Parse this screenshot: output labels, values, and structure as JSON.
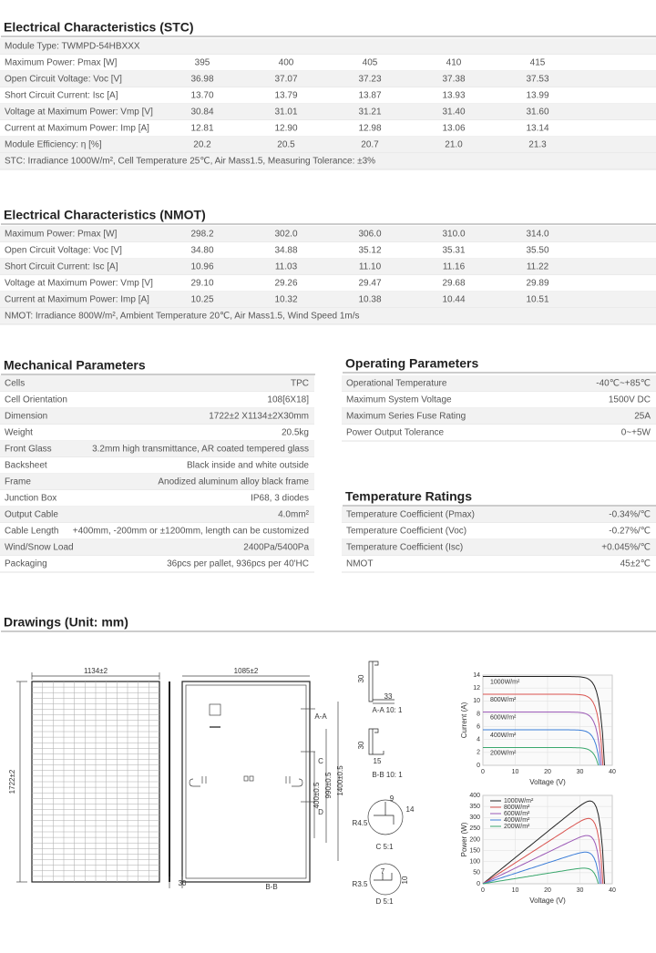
{
  "stc": {
    "title": "Electrical Characteristics (STC)",
    "module_type": "Module Type: TWMPD-54HBXXX",
    "rows": [
      {
        "label": "Maximum Power: Pmax [W]",
        "values": [
          "395",
          "400",
          "405",
          "410",
          "415"
        ]
      },
      {
        "label": "Open Circuit Voltage: Voc [V]",
        "values": [
          "36.98",
          "37.07",
          "37.23",
          "37.38",
          "37.53"
        ]
      },
      {
        "label": "Short Circuit Current: Isc [A]",
        "values": [
          "13.70",
          "13.79",
          "13.87",
          "13.93",
          "13.99"
        ]
      },
      {
        "label": "Voltage at Maximum Power: Vmp [V]",
        "values": [
          "30.84",
          "31.01",
          "31.21",
          "31.40",
          "31.60"
        ]
      },
      {
        "label": "Current at Maximum Power: Imp [A]",
        "values": [
          "12.81",
          "12.90",
          "12.98",
          "13.06",
          "13.14"
        ]
      },
      {
        "label": "Module Efficiency: η [%]",
        "values": [
          "20.2",
          "20.5",
          "20.7",
          "21.0",
          "21.3"
        ]
      }
    ],
    "note": "STC: Irradiance 1000W/m², Cell Temperature 25℃, Air Mass1.5, Measuring Tolerance: ±3%"
  },
  "nmot": {
    "title": "Electrical Characteristics (NMOT)",
    "rows": [
      {
        "label": "Maximum Power: Pmax [W]",
        "values": [
          "298.2",
          "302.0",
          "306.0",
          "310.0",
          "314.0"
        ]
      },
      {
        "label": "Open Circuit Voltage: Voc [V]",
        "values": [
          "34.80",
          "34.88",
          "35.12",
          "35.31",
          "35.50"
        ]
      },
      {
        "label": "Short Circuit Current: Isc [A]",
        "values": [
          "10.96",
          "11.03",
          "11.10",
          "11.16",
          "11.22"
        ]
      },
      {
        "label": "Voltage at Maximum Power: Vmp [V]",
        "values": [
          "29.10",
          "29.26",
          "29.47",
          "29.68",
          "29.89"
        ]
      },
      {
        "label": "Current at Maximum Power: Imp [A]",
        "values": [
          "10.25",
          "10.32",
          "10.38",
          "10.44",
          "10.51"
        ]
      }
    ],
    "note": "NMOT: Irradiance 800W/m², Ambient Temperature 20℃, Air Mass1.5, Wind Speed 1m/s"
  },
  "mechanical": {
    "title": "Mechanical Parameters",
    "rows": [
      {
        "label": "Cells",
        "value": "TPC"
      },
      {
        "label": "Cell Orientation",
        "value": "108[6X18]"
      },
      {
        "label": "Dimension",
        "value": "1722±2 X1134±2X30mm"
      },
      {
        "label": "Weight",
        "value": "20.5kg"
      },
      {
        "label": "Front Glass",
        "value": "3.2mm high transmittance, AR coated tempered glass"
      },
      {
        "label": "Backsheet",
        "value": "Black inside and white outside"
      },
      {
        "label": "Frame",
        "value": "Anodized aluminum alloy black frame"
      },
      {
        "label": "Junction Box",
        "value": "IP68, 3 diodes"
      },
      {
        "label": "Output Cable",
        "value": "4.0mm²"
      },
      {
        "label": "Cable Length",
        "value": "+400mm, -200mm or ±1200mm, length can be customized"
      },
      {
        "label": "Wind/Snow Load",
        "value": "2400Pa/5400Pa"
      },
      {
        "label": "Packaging",
        "value": "36pcs per pallet, 936pcs per 40'HC"
      }
    ]
  },
  "operating": {
    "title": "Operating Parameters",
    "rows": [
      {
        "label": "Operational Temperature",
        "value": "-40℃~+85℃"
      },
      {
        "label": "Maximum System Voltage",
        "value": "1500V DC"
      },
      {
        "label": "Maximum Series Fuse Rating",
        "value": "25A"
      },
      {
        "label": "Power Output Tolerance",
        "value": "0~+5W"
      }
    ]
  },
  "temperature": {
    "title": "Temperature Ratings",
    "rows": [
      {
        "label": "Temperature Coefficient (Pmax)",
        "value": "-0.34%/℃"
      },
      {
        "label": "Temperature Coefficient (Voc)",
        "value": "-0.27%/℃"
      },
      {
        "label": "Temperature Coefficient (Isc)",
        "value": "+0.045%/℃"
      },
      {
        "label": "NMOT",
        "value": "45±2℃"
      }
    ]
  },
  "drawings": {
    "title": "Drawings (Unit: mm)",
    "labels": [
      "1134±2",
      "1085±2",
      "1722±2",
      "30",
      "A-A",
      "C",
      "D",
      "400±0.5",
      "990±0.5",
      "1400±0.5",
      "B-B",
      "33",
      "A-A 10: 1",
      "30",
      "30",
      "15",
      "B-B 10: 1",
      "9",
      "14",
      "R4.5",
      "C 5:1",
      "7",
      "10",
      "R3.5",
      "D 5:1"
    ],
    "iv_chart": {
      "y_label": "Current (A)",
      "x_label": "Voltage (V)",
      "yticks": [
        "0",
        "2",
        "4",
        "6",
        "8",
        "10",
        "12",
        "14"
      ],
      "xticks": [
        "0",
        "10",
        "20",
        "30",
        "40"
      ],
      "legend": [
        "1000W/m²",
        "800W/m²",
        "600W/m²",
        "400W/m²",
        "200W/m²"
      ]
    },
    "pv_chart": {
      "y_label": "Power (W)",
      "x_label": "Voltage (V)",
      "yticks": [
        "0",
        "50",
        "100",
        "150",
        "200",
        "250",
        "300",
        "350",
        "400"
      ],
      "xticks": [
        "0",
        "10",
        "20",
        "30",
        "40"
      ],
      "legend": [
        "1000W/m²",
        "800W/m²",
        "600W/m²",
        "400W/m²",
        "200W/m²"
      ]
    }
  }
}
